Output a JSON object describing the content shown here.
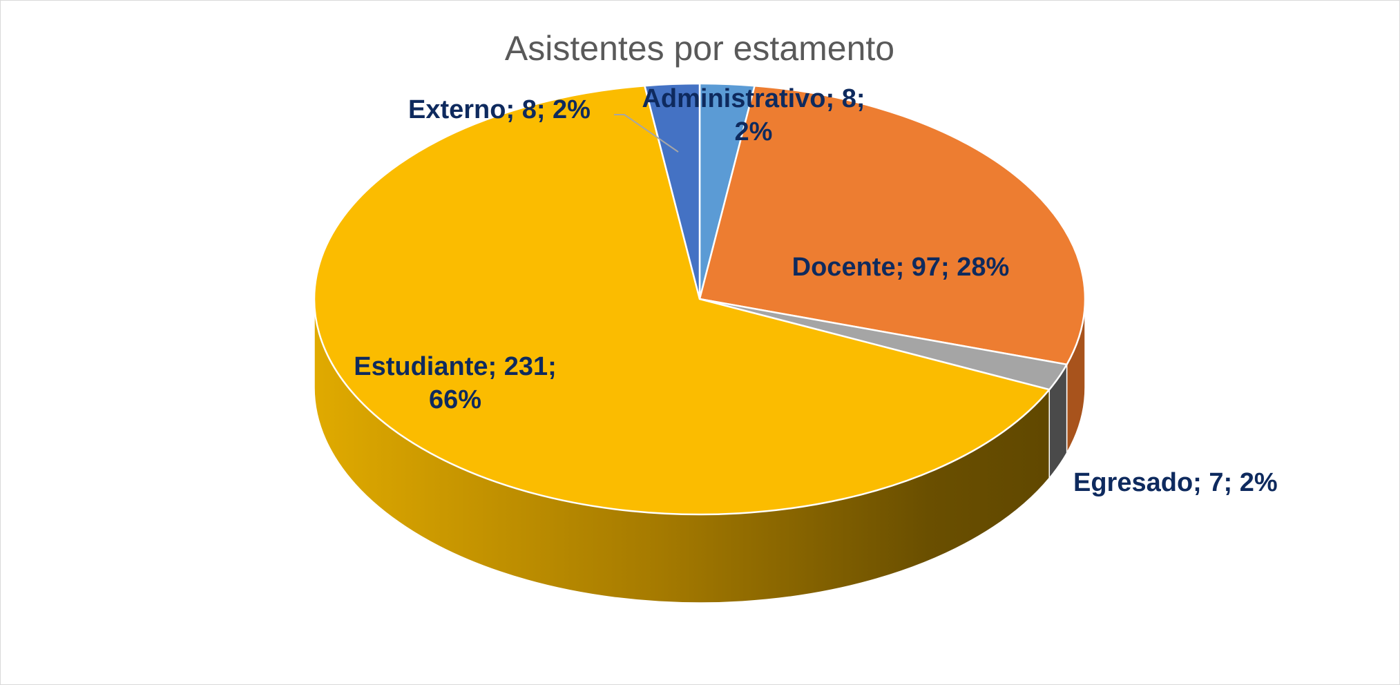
{
  "chart_data": {
    "type": "pie",
    "variant": "3d",
    "title": "Asistentes por estamento",
    "start_angle_deg": 0,
    "direction": "clockwise",
    "slices": [
      {
        "name": "Administrativo",
        "value": 8,
        "percent": "2%",
        "color": "#5b9bd5",
        "side_color": "#3b6fa0",
        "label_lines": [
          "Administrativo;  8;",
          "2%"
        ]
      },
      {
        "name": "Docente",
        "value": 97,
        "percent": "28%",
        "color": "#ed7d31",
        "side_color": "#a8531c",
        "label_lines": [
          "Docente; 97; 28%"
        ]
      },
      {
        "name": "Egresado",
        "value": 7,
        "percent": "2%",
        "color": "#a5a5a5",
        "side_color": "#4a4a4a",
        "label_lines": [
          "Egresado; 7; 2%"
        ]
      },
      {
        "name": "Estudiante",
        "value": 231,
        "percent": "66%",
        "color": "#fbbc00",
        "side_color": "#7a5a00",
        "label_lines": [
          "Estudiante; 231;",
          "66%"
        ]
      },
      {
        "name": "Externo",
        "value": 8,
        "percent": "2%",
        "color": "#4472c4",
        "side_color": "#2a4a85",
        "label_lines": [
          "Externo; 8; 2%"
        ]
      }
    ],
    "legend": "none",
    "leader_lines": true
  }
}
